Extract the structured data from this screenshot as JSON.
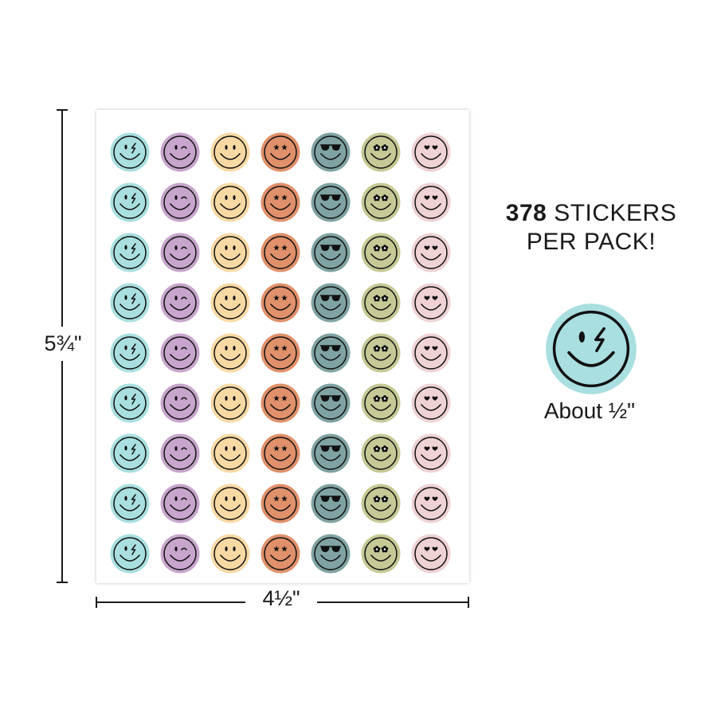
{
  "dimensions": {
    "height_label": "5¾\"",
    "width_label": "4½\""
  },
  "promo": {
    "count": "378",
    "line1_rest": "STICKERS",
    "line2": "PER PACK!"
  },
  "size_note": "About ½\"",
  "sticker_sheet": {
    "rows": 9,
    "columns": [
      {
        "face": "lightning",
        "color": "#a9dfe0"
      },
      {
        "face": "wink",
        "color": "#c7a5cc"
      },
      {
        "face": "smile",
        "color": "#f8d9a4"
      },
      {
        "face": "stars",
        "color": "#e0906a"
      },
      {
        "face": "sunglasses",
        "color": "#7fa3a2"
      },
      {
        "face": "flowers",
        "color": "#c6c995"
      },
      {
        "face": "hearts",
        "color": "#efd2d4"
      }
    ]
  },
  "sample_sticker": {
    "face": "lightning",
    "color": "#a9dfe0"
  }
}
